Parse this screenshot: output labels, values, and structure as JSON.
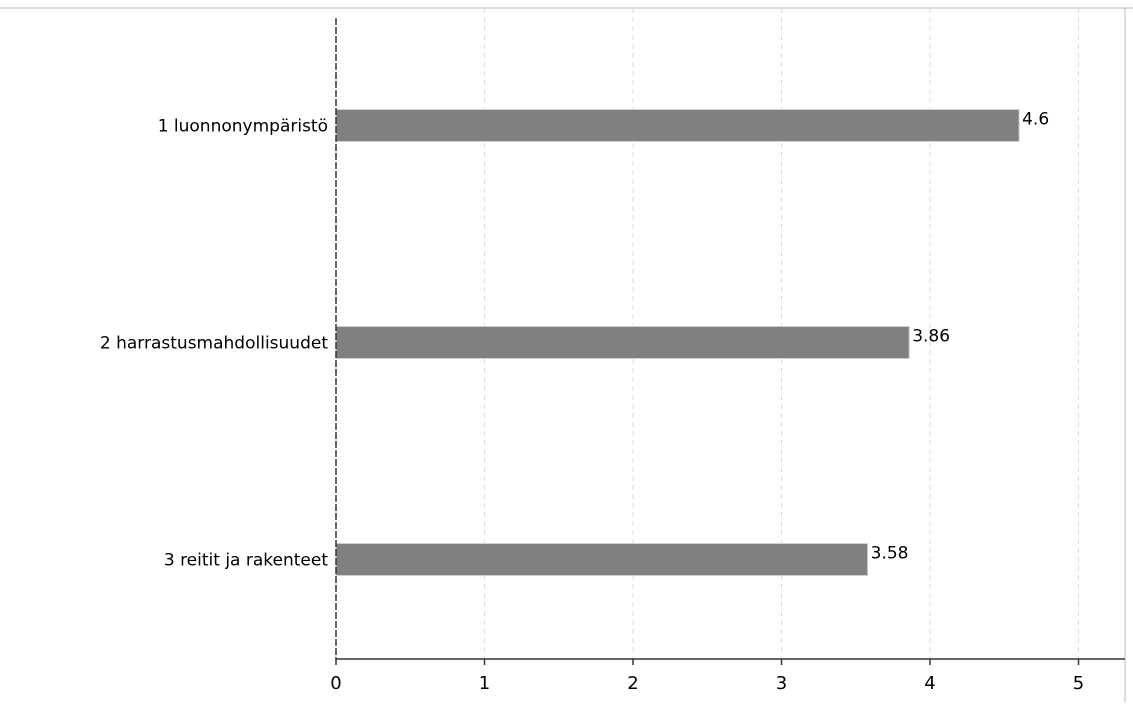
{
  "chart_data": {
    "type": "bar",
    "orientation": "horizontal",
    "categories": [
      "1 luonnonympäristö",
      "2 harrastusmahdollisuudet",
      "3 reitit ja rakenteet"
    ],
    "values": [
      4.6,
      3.86,
      3.58
    ],
    "value_labels": [
      "4.6",
      "3.86",
      "3.58"
    ],
    "xlim": [
      0,
      5.33
    ],
    "xticks": [
      0,
      1,
      2,
      3,
      4,
      5
    ],
    "xtick_labels": [
      "0",
      "1",
      "2",
      "3",
      "4",
      "5"
    ],
    "grid": "vertical dashed",
    "colors": {
      "bar": "#808080",
      "grid": "#dddddd",
      "axis": "#333333",
      "text": "#000000"
    }
  }
}
